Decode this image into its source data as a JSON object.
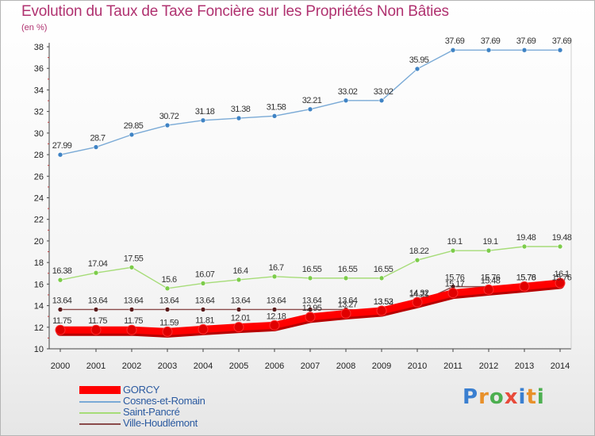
{
  "title": "Evolution du Taux de Taxe Foncière sur les Propriétés Non Bâties",
  "subtitle": "(en %)",
  "brand": {
    "text": "Proxiti",
    "letter_colors": [
      "#3a7fd0",
      "#e8902a",
      "#4caf50",
      "#e84a3a",
      "#3a7fd0",
      "#e8902a",
      "#4caf50"
    ]
  },
  "chart_data": {
    "type": "line",
    "x": [
      "2000",
      "2001",
      "2002",
      "2003",
      "2004",
      "2005",
      "2006",
      "2007",
      "2008",
      "2009",
      "2010",
      "2011",
      "2012",
      "2013",
      "2014"
    ],
    "ylim": [
      10,
      38
    ],
    "yticks": [
      "10",
      "12",
      "14",
      "16",
      "18",
      "20",
      "22",
      "24",
      "26",
      "28",
      "30",
      "32",
      "34",
      "36",
      "38"
    ],
    "grid": false,
    "legend_position": "bottom-left",
    "series": [
      {
        "name": "Cosnes-et-Romain",
        "color": "#7aaad6",
        "point_color": "#3f83c4",
        "values": [
          27.99,
          28.7,
          29.85,
          30.72,
          31.18,
          31.38,
          31.58,
          32.21,
          33.02,
          33.02,
          35.95,
          37.69,
          37.69,
          37.69,
          37.69
        ],
        "labels": [
          "27.99",
          "28.7",
          "29.85",
          "30.72",
          "31.18",
          "31.38",
          "31.58",
          "32.21",
          "33.02",
          "33.02",
          "35.95",
          "37.69",
          "37.69",
          "37.69",
          "37.69"
        ]
      },
      {
        "name": "Saint-Pancré",
        "color": "#a6dc78",
        "point_color": "#7ccc4a",
        "values": [
          16.38,
          17.04,
          17.55,
          15.6,
          16.07,
          16.4,
          16.7,
          16.55,
          16.55,
          16.55,
          18.22,
          19.1,
          19.1,
          19.48,
          19.48
        ],
        "labels": [
          "16.38",
          "17.04",
          "17.55",
          "15.6",
          "16.07",
          "16.4",
          "16.7",
          "16.55",
          "16.55",
          "16.55",
          "18.22",
          "19.1",
          "19.1",
          "19.48",
          "19.48"
        ]
      },
      {
        "name": "Ville-Houdlémont",
        "color": "#8a4a4a",
        "point_color": "#5a1a1a",
        "values": [
          13.64,
          13.64,
          13.64,
          13.64,
          13.64,
          13.64,
          13.64,
          13.64,
          13.64,
          13.52,
          14.21,
          15.76,
          15.76,
          15.76,
          15.76
        ],
        "labels": [
          "13.64",
          "13.64",
          "13.64",
          "13.64",
          "13.64",
          "13.64",
          "13.64",
          "13.64",
          "13.64",
          "13.52",
          "14.21",
          "15.76",
          "15.76",
          "15.76",
          "15.76"
        ]
      },
      {
        "name": "GORCY",
        "color": "#ff0000",
        "point_color": "#e00000",
        "thick": true,
        "values": [
          11.75,
          11.75,
          11.75,
          11.59,
          11.81,
          12.01,
          12.18,
          12.95,
          13.27,
          13.53,
          14.32,
          15.17,
          15.48,
          15.78,
          16.1
        ],
        "labels": [
          "11.75",
          "11.75",
          "11.75",
          "11.59",
          "11.81",
          "12.01",
          "12.18",
          "12.95",
          "13.27",
          "13.53",
          "14.32",
          "15.17",
          "15.48",
          "15.78",
          "16.1"
        ]
      }
    ],
    "legend": [
      {
        "name": "GORCY",
        "color": "#ff0000",
        "thick": true
      },
      {
        "name": "Cosnes-et-Romain",
        "color": "#7aaad6",
        "thick": false
      },
      {
        "name": "Saint-Pancré",
        "color": "#a6dc78",
        "thick": false
      },
      {
        "name": "Ville-Houdlémont",
        "color": "#8a4a4a",
        "thick": false
      }
    ]
  }
}
